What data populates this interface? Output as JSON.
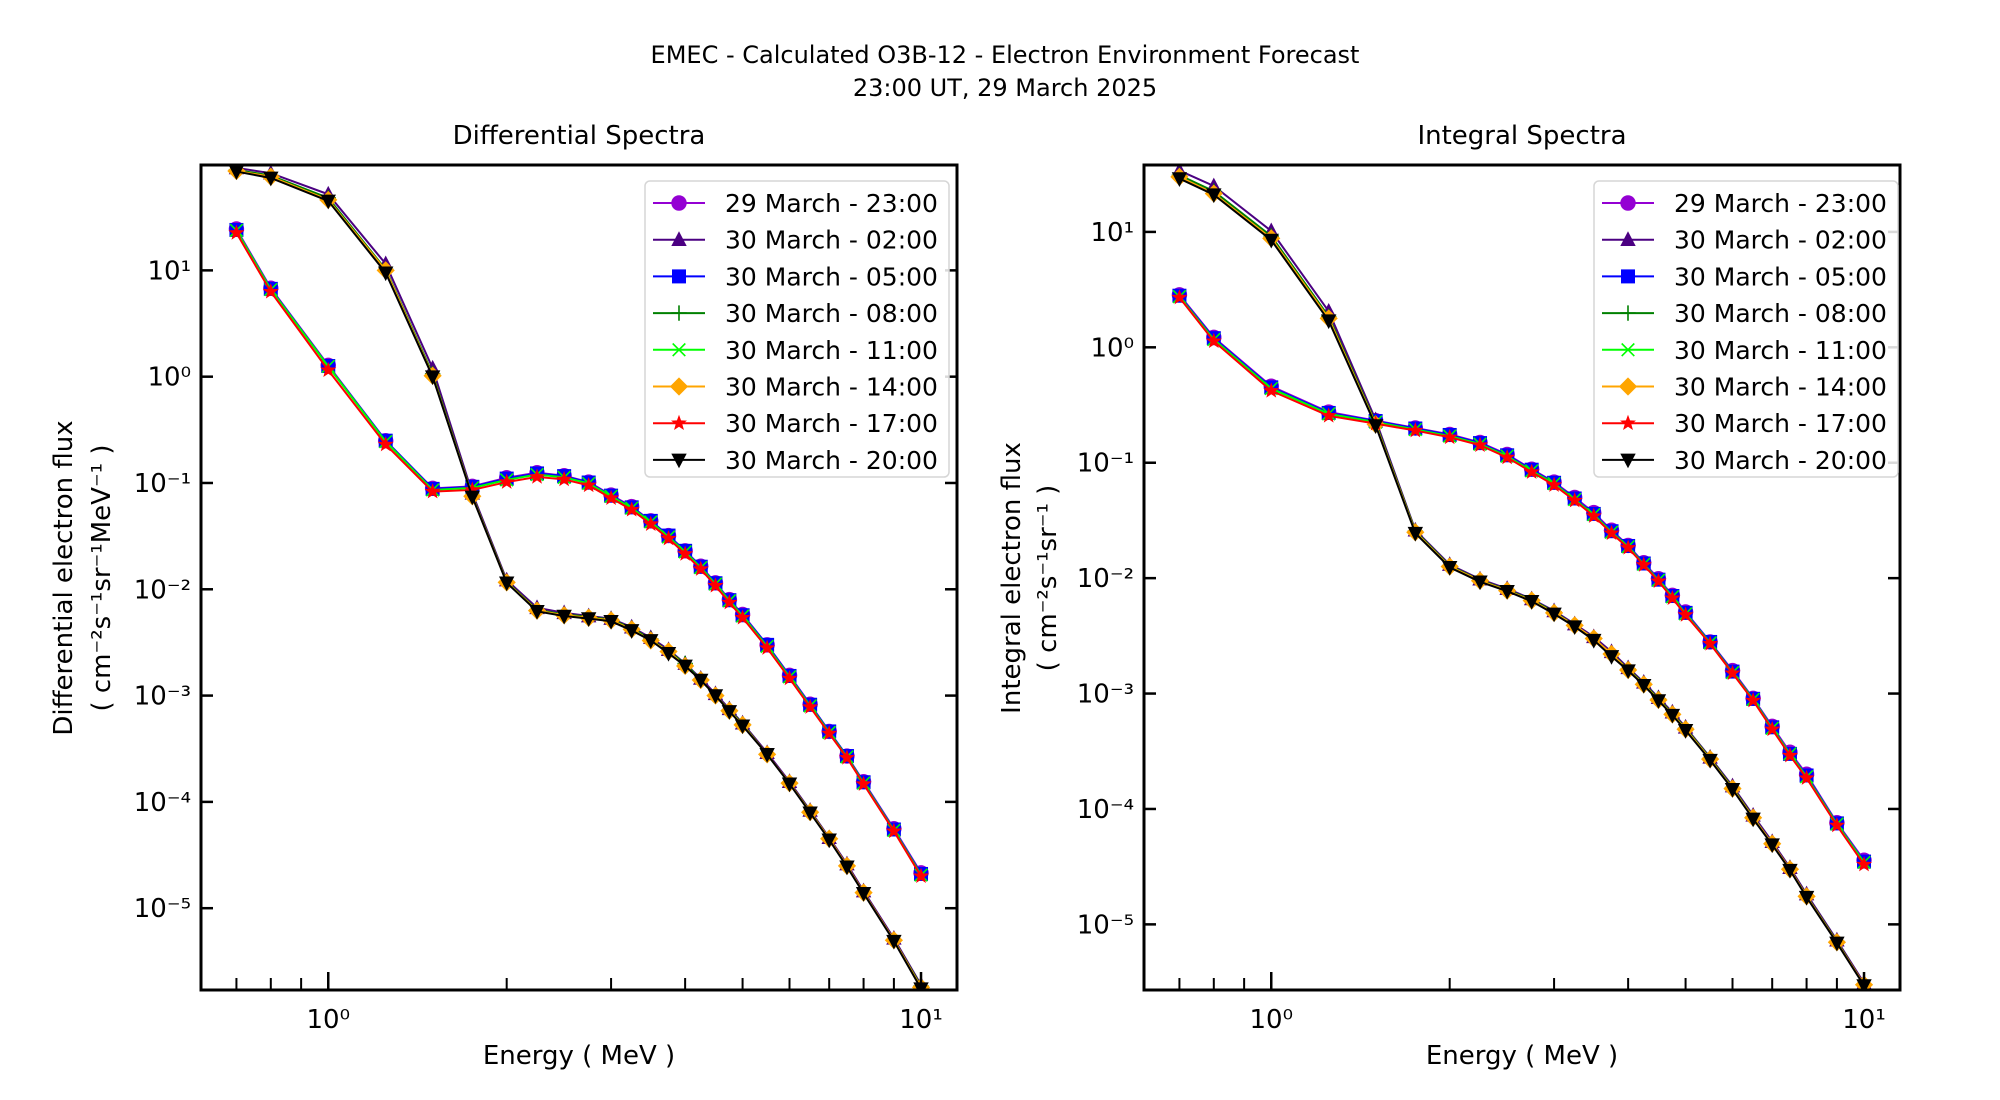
{
  "figure": {
    "title": "EMEC - Calculated O3B-12 - Electron Environment Forecast",
    "subtitle": "23:00 UT, 29 March 2025"
  },
  "legend_entries": [
    {
      "label": "29 March - 23:00",
      "color": "#9400d3",
      "marker": "circle"
    },
    {
      "label": "30 March - 02:00",
      "color": "#4b0082",
      "marker": "triangle-up"
    },
    {
      "label": "30 March - 05:00",
      "color": "#0000ff",
      "marker": "square"
    },
    {
      "label": "30 March - 08:00",
      "color": "#008000",
      "marker": "plus"
    },
    {
      "label": "30 March - 11:00",
      "color": "#00ff00",
      "marker": "x"
    },
    {
      "label": "30 March - 14:00",
      "color": "#ffa500",
      "marker": "diamond"
    },
    {
      "label": "30 March - 17:00",
      "color": "#ff0000",
      "marker": "star"
    },
    {
      "label": "30 March - 20:00",
      "color": "#000000",
      "marker": "triangle-down"
    }
  ],
  "chart_data": [
    {
      "type": "line",
      "title": "Differential Spectra",
      "xlabel": "Energy ( MeV )",
      "ylabel": "Differential electron flux",
      "ylabel_units": "( cm⁻²s⁻¹sr⁻¹MeV⁻¹ )",
      "xscale": "log",
      "yscale": "log",
      "xlim": [
        0.61,
        11.5
      ],
      "ylim": [
        1.7e-06,
        98
      ],
      "xticks": [
        {
          "value": 1,
          "label": "10⁰"
        },
        {
          "value": 10,
          "label": "10¹"
        }
      ],
      "yticks": [
        {
          "value": 10,
          "label": "10¹"
        },
        {
          "value": 1,
          "label": "10⁰"
        },
        {
          "value": 0.1,
          "label": "10⁻¹"
        },
        {
          "value": 0.01,
          "label": "10⁻²"
        },
        {
          "value": 0.001,
          "label": "10⁻³"
        },
        {
          "value": 0.0001,
          "label": "10⁻⁴"
        },
        {
          "value": 1e-05,
          "label": "10⁻⁵"
        }
      ],
      "grid": false,
      "legend_position": "upper-right",
      "x": [
        0.7,
        0.8,
        1.0,
        1.25,
        1.5,
        1.75,
        2.0,
        2.25,
        2.5,
        2.75,
        3.0,
        3.25,
        3.5,
        3.75,
        4.0,
        4.25,
        4.5,
        4.75,
        5.0,
        5.5,
        6.0,
        6.5,
        7.0,
        7.5,
        8.0,
        9.0,
        10.0
      ],
      "series": [
        {
          "name": "29 March - 23:00",
          "values": [
            24.5,
            6.8,
            1.28,
            0.25,
            0.089,
            0.093,
            0.112,
            0.125,
            0.117,
            0.102,
            0.077,
            0.06,
            0.044,
            0.032,
            0.023,
            0.0165,
            0.0115,
            0.008,
            0.0058,
            0.003,
            0.00155,
            0.00083,
            0.00046,
            0.00027,
            0.000155,
            5.6e-05,
            2.15e-05
          ]
        },
        {
          "name": "30 March - 02:00",
          "values": [
            92,
            82,
            52,
            11.5,
            1.2,
            0.08,
            0.0122,
            0.0067,
            0.006,
            0.0056,
            0.0053,
            0.0044,
            0.0035,
            0.0027,
            0.002,
            0.00145,
            0.00104,
            0.00075,
            0.00055,
            0.00029,
            0.000155,
            8.3e-05,
            4.6e-05,
            2.6e-05,
            1.45e-05,
            5.2e-06,
            1.9e-06
          ]
        },
        {
          "name": "30 March - 05:00",
          "values": [
            24,
            6.7,
            1.26,
            0.25,
            0.088,
            0.092,
            0.11,
            0.123,
            0.116,
            0.101,
            0.076,
            0.059,
            0.044,
            0.032,
            0.023,
            0.0163,
            0.0114,
            0.0079,
            0.0057,
            0.003,
            0.00153,
            0.00082,
            0.00046,
            0.00027,
            0.000153,
            5.5e-05,
            2.1e-05
          ]
        },
        {
          "name": "30 March - 08:00",
          "values": [
            88,
            78,
            48,
            10.2,
            1.06,
            0.076,
            0.0118,
            0.0064,
            0.0058,
            0.0055,
            0.0052,
            0.0043,
            0.0034,
            0.0026,
            0.002,
            0.0014,
            0.001,
            0.00073,
            0.00054,
            0.00028,
            0.00015,
            8.1e-05,
            4.5e-05,
            2.5e-05,
            1.4e-05,
            5e-06,
            1.85e-06
          ]
        },
        {
          "name": "30 March - 11:00",
          "values": [
            23.8,
            6.6,
            1.25,
            0.245,
            0.086,
            0.09,
            0.107,
            0.12,
            0.113,
            0.099,
            0.075,
            0.058,
            0.043,
            0.031,
            0.0225,
            0.016,
            0.0112,
            0.0078,
            0.0056,
            0.0029,
            0.0015,
            0.0008,
            0.00045,
            0.000265,
            0.00015,
            5.4e-05,
            2.05e-05
          ]
        },
        {
          "name": "30 March - 14:00",
          "values": [
            86,
            76,
            46,
            10,
            1.02,
            0.075,
            0.0116,
            0.0063,
            0.0057,
            0.0054,
            0.0051,
            0.0042,
            0.0033,
            0.0026,
            0.0019,
            0.0014,
            0.001,
            0.00072,
            0.00053,
            0.00028,
            0.00015,
            8e-05,
            4.5e-05,
            2.5e-05,
            1.4e-05,
            5e-06,
            1.8e-06
          ]
        },
        {
          "name": "30 March - 17:00",
          "values": [
            22.5,
            6.3,
            1.15,
            0.23,
            0.083,
            0.086,
            0.102,
            0.114,
            0.108,
            0.095,
            0.072,
            0.056,
            0.041,
            0.03,
            0.0215,
            0.0155,
            0.0108,
            0.0075,
            0.0054,
            0.0028,
            0.00145,
            0.00078,
            0.00044,
            0.00026,
            0.000147,
            5.3e-05,
            2e-05
          ]
        },
        {
          "name": "30 March - 20:00",
          "values": [
            85,
            74,
            45,
            9.5,
            1.0,
            0.074,
            0.0115,
            0.0062,
            0.0056,
            0.0053,
            0.005,
            0.0041,
            0.0033,
            0.0025,
            0.0019,
            0.0014,
            0.001,
            0.00071,
            0.00052,
            0.00028,
            0.000148,
            7.9e-05,
            4.4e-05,
            2.45e-05,
            1.38e-05,
            4.9e-06,
            1.75e-06
          ]
        }
      ]
    },
    {
      "type": "line",
      "title": "Integral Spectra",
      "xlabel": "Energy ( MeV )",
      "ylabel": "Integral electron flux",
      "ylabel_units": "( cm⁻²s⁻¹sr⁻¹ )",
      "xscale": "log",
      "yscale": "log",
      "xlim": [
        0.61,
        11.5
      ],
      "ylim": [
        2.7e-06,
        38
      ],
      "xticks": [
        {
          "value": 1,
          "label": "10⁰"
        },
        {
          "value": 10,
          "label": "10¹"
        }
      ],
      "yticks": [
        {
          "value": 10,
          "label": "10¹"
        },
        {
          "value": 1,
          "label": "10⁰"
        },
        {
          "value": 0.1,
          "label": "10⁻¹"
        },
        {
          "value": 0.01,
          "label": "10⁻²"
        },
        {
          "value": 0.001,
          "label": "10⁻³"
        },
        {
          "value": 0.0001,
          "label": "10⁻⁴"
        },
        {
          "value": 1e-05,
          "label": "10⁻⁵"
        }
      ],
      "grid": false,
      "legend_position": "upper-right",
      "x": [
        0.7,
        0.8,
        1.0,
        1.25,
        1.5,
        1.75,
        2.0,
        2.25,
        2.5,
        2.75,
        3.0,
        3.25,
        3.5,
        3.75,
        4.0,
        4.25,
        4.5,
        4.75,
        5.0,
        5.5,
        6.0,
        6.5,
        7.0,
        7.5,
        8.0,
        9.0,
        10.0
      ],
      "series": [
        {
          "name": "29 March - 23:00",
          "values": [
            2.85,
            1.22,
            0.46,
            0.275,
            0.232,
            0.2,
            0.176,
            0.15,
            0.118,
            0.088,
            0.068,
            0.05,
            0.037,
            0.026,
            0.0192,
            0.0136,
            0.0099,
            0.0071,
            0.0051,
            0.0028,
            0.00158,
            0.00091,
            0.00052,
            0.00031,
            0.0002,
            7.6e-05,
            3.6e-05
          ]
        },
        {
          "name": "30 March - 02:00",
          "values": [
            34,
            25,
            10.2,
            2.05,
            0.235,
            0.026,
            0.0131,
            0.0098,
            0.0081,
            0.0066,
            0.0052,
            0.004,
            0.0031,
            0.0023,
            0.00167,
            0.00125,
            0.00092,
            0.00069,
            0.00051,
            0.00028,
            0.000158,
            8.8e-05,
            5.2e-05,
            3.1e-05,
            1.83e-05,
            7.3e-06,
            3.1e-06
          ]
        },
        {
          "name": "30 March - 05:00",
          "values": [
            2.8,
            1.2,
            0.45,
            0.27,
            0.23,
            0.198,
            0.174,
            0.148,
            0.116,
            0.087,
            0.067,
            0.049,
            0.036,
            0.0255,
            0.019,
            0.0134,
            0.0097,
            0.007,
            0.005,
            0.0028,
            0.00155,
            0.0009,
            0.00051,
            0.0003,
            0.000195,
            7.5e-05,
            3.5e-05
          ]
        },
        {
          "name": "30 March - 08:00",
          "values": [
            31,
            22.5,
            9.2,
            1.85,
            0.222,
            0.0255,
            0.0128,
            0.0096,
            0.0079,
            0.0065,
            0.0051,
            0.0039,
            0.003,
            0.0022,
            0.00163,
            0.00122,
            0.0009,
            0.00067,
            0.0005,
            0.000275,
            0.000153,
            8.5e-05,
            5e-05,
            3e-05,
            1.77e-05,
            7.1e-06,
            3e-06
          ]
        },
        {
          "name": "30 March - 11:00",
          "values": [
            2.75,
            1.17,
            0.44,
            0.265,
            0.225,
            0.194,
            0.17,
            0.145,
            0.114,
            0.085,
            0.066,
            0.048,
            0.0355,
            0.025,
            0.0187,
            0.0132,
            0.0096,
            0.0069,
            0.0049,
            0.00275,
            0.00152,
            0.00089,
            0.0005,
            0.0003,
            0.00019,
            7.4e-05,
            3.45e-05
          ]
        },
        {
          "name": "30 March - 14:00",
          "values": [
            30,
            21.5,
            8.8,
            1.78,
            0.215,
            0.025,
            0.0126,
            0.0095,
            0.0078,
            0.0064,
            0.005,
            0.0039,
            0.003,
            0.0022,
            0.0016,
            0.0012,
            0.00088,
            0.00066,
            0.00049,
            0.00027,
            0.00015,
            8.4e-05,
            5e-05,
            3e-05,
            1.75e-05,
            7e-06,
            3e-06
          ]
        },
        {
          "name": "30 March - 17:00",
          "values": [
            2.7,
            1.13,
            0.42,
            0.255,
            0.218,
            0.19,
            0.166,
            0.142,
            0.111,
            0.083,
            0.064,
            0.047,
            0.0345,
            0.0245,
            0.0183,
            0.013,
            0.0094,
            0.0067,
            0.0048,
            0.0027,
            0.0015,
            0.00087,
            0.00049,
            0.00029,
            0.000185,
            7.2e-05,
            3.3e-05
          ]
        },
        {
          "name": "30 March - 20:00",
          "values": [
            29,
            21,
            8.5,
            1.7,
            0.21,
            0.0245,
            0.0124,
            0.0093,
            0.0077,
            0.0063,
            0.0049,
            0.0038,
            0.0029,
            0.0021,
            0.00158,
            0.00118,
            0.00087,
            0.00065,
            0.00048,
            0.000265,
            0.000148,
            8.2e-05,
            4.9e-05,
            2.95e-05,
            1.72e-05,
            6.9e-06,
            2.95e-06
          ]
        }
      ]
    }
  ]
}
